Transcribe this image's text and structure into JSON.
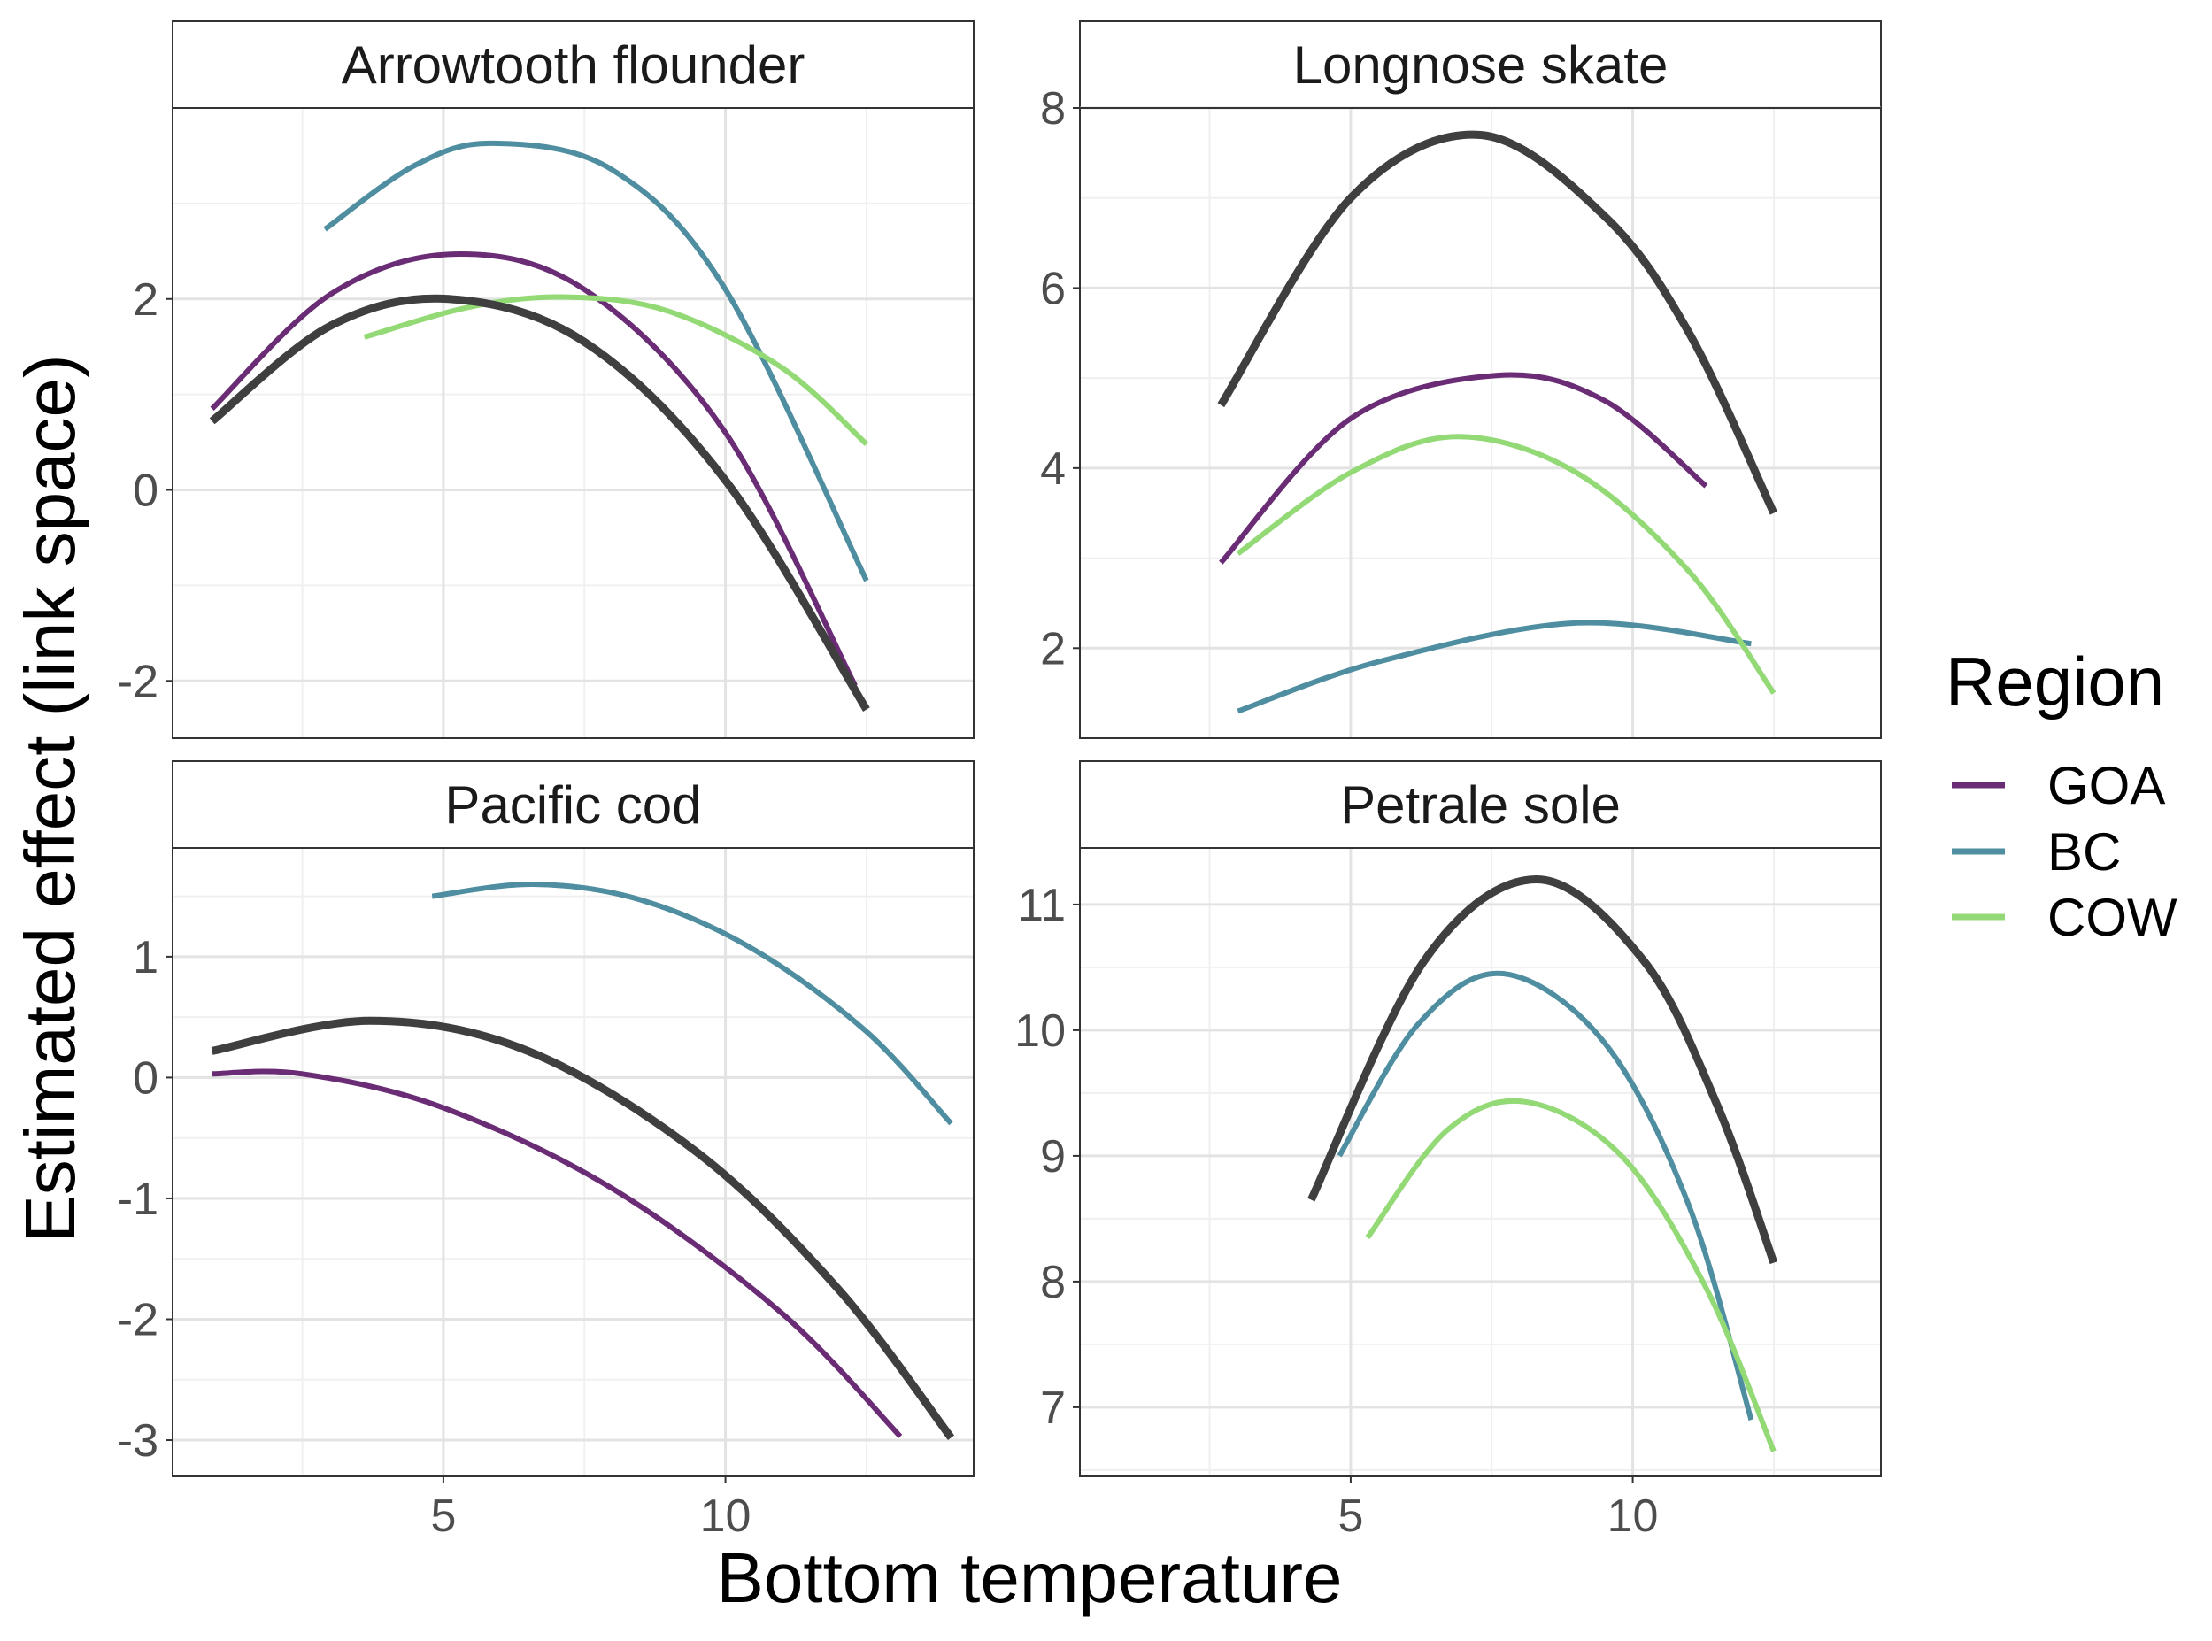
{
  "chart_data": {
    "type": "line",
    "xlabel": "Bottom temperature",
    "ylabel": "Estimated effect (link space)",
    "xlim": [
      0.2,
      14.4
    ],
    "x_ticks": [
      5,
      10
    ],
    "grid": true,
    "legend": {
      "title": "Region",
      "placement": "right",
      "entries": [
        {
          "name": "GOA",
          "color": "#6a2c75"
        },
        {
          "name": "BC",
          "color": "#4f8ea0"
        },
        {
          "name": "COW",
          "color": "#93d975"
        }
      ]
    },
    "overall_color": "#3f3f3f",
    "panels": [
      {
        "title": "Arrowtooth flounder",
        "ylim": [
          -2.6,
          4.0
        ],
        "y_ticks": [
          -2,
          0,
          2
        ],
        "y_tick_labels": [
          "-2",
          "0",
          "2"
        ],
        "series": [
          {
            "region": "overall",
            "x": [
              0.9,
              3.0,
              5.1,
              7.5,
              10.0,
              12.5
            ],
            "y": [
              0.72,
              1.72,
              2.0,
              1.55,
              0.1,
              -2.3
            ]
          },
          {
            "name": "GOA",
            "x": [
              0.9,
              3.0,
              5.2,
              7.5,
              10.0,
              12.3
            ],
            "y": [
              0.85,
              2.05,
              2.47,
              2.1,
              0.6,
              -2.05
            ]
          },
          {
            "name": "BC",
            "x": [
              2.9,
              4.5,
              5.9,
              8.0,
              10.0,
              12.5
            ],
            "y": [
              2.73,
              3.4,
              3.63,
              3.35,
              2.1,
              -0.95
            ]
          },
          {
            "name": "COW",
            "x": [
              3.6,
              5.5,
              7.2,
              9.0,
              11.0,
              12.5
            ],
            "y": [
              1.6,
              1.92,
              2.02,
              1.87,
              1.28,
              0.48
            ]
          }
        ]
      },
      {
        "title": "Longnose skate",
        "ylim": [
          1.0,
          8.0
        ],
        "y_ticks": [
          2,
          4,
          6,
          8
        ],
        "y_tick_labels": [
          "2",
          "4",
          "6",
          "8"
        ],
        "series": [
          {
            "region": "overall",
            "x": [
              2.7,
              5.0,
              7.3,
              9.5,
              11.0,
              12.5
            ],
            "y": [
              4.7,
              7.0,
              7.7,
              6.8,
              5.5,
              3.5
            ]
          },
          {
            "name": "GOA",
            "x": [
              2.7,
              5.0,
              7.6,
              9.5,
              11.3
            ],
            "y": [
              2.95,
              4.55,
              5.03,
              4.75,
              3.8
            ]
          },
          {
            "name": "BC",
            "x": [
              3.0,
              5.5,
              9.0,
              12.1
            ],
            "y": [
              1.3,
              1.85,
              2.28,
              2.05
            ]
          },
          {
            "name": "COW",
            "x": [
              3.0,
              5.0,
              6.9,
              9.0,
              11.0,
              12.5
            ],
            "y": [
              3.05,
              3.95,
              4.35,
              3.95,
              2.85,
              1.5
            ]
          }
        ]
      },
      {
        "title": "Pacific cod",
        "ylim": [
          -3.3,
          1.9
        ],
        "y_ticks": [
          -3,
          -2,
          -1,
          0,
          1
        ],
        "y_tick_labels": [
          "-3",
          "-2",
          "-1",
          "0",
          "1"
        ],
        "series": [
          {
            "region": "overall",
            "x": [
              0.9,
              3.7,
              6.5,
              9.5,
              12.0,
              14.0
            ],
            "y": [
              0.22,
              0.47,
              0.22,
              -0.62,
              -1.75,
              -2.98
            ]
          },
          {
            "name": "GOA",
            "x": [
              0.9,
              2.5,
              5.0,
              8.0,
              11.0,
              13.1
            ],
            "y": [
              0.03,
              0.03,
              -0.25,
              -0.92,
              -1.95,
              -2.97
            ]
          },
          {
            "name": "BC",
            "x": [
              4.8,
              6.6,
              8.5,
              10.5,
              12.5,
              14.0
            ],
            "y": [
              1.5,
              1.6,
              1.47,
              1.06,
              0.38,
              -0.38
            ]
          }
        ]
      },
      {
        "title": "Petrale sole",
        "ylim": [
          6.45,
          11.45
        ],
        "y_ticks": [
          7,
          8,
          9,
          10,
          11
        ],
        "y_tick_labels": [
          "7",
          "8",
          "9",
          "10",
          "11"
        ],
        "series": [
          {
            "region": "overall",
            "x": [
              4.3,
              6.3,
              8.3,
              10.2,
              11.5,
              12.5
            ],
            "y": [
              8.65,
              10.55,
              11.2,
              10.55,
              9.4,
              8.15
            ]
          },
          {
            "name": "BC",
            "x": [
              4.8,
              6.2,
              7.7,
              9.5,
              11.0,
              12.1
            ],
            "y": [
              9.0,
              10.05,
              10.45,
              9.9,
              8.6,
              6.9
            ]
          },
          {
            "name": "COW",
            "x": [
              5.3,
              6.7,
              8.1,
              9.8,
              11.3,
              12.5
            ],
            "y": [
              8.35,
              9.2,
              9.43,
              9.0,
              7.95,
              6.65
            ]
          }
        ]
      }
    ]
  }
}
